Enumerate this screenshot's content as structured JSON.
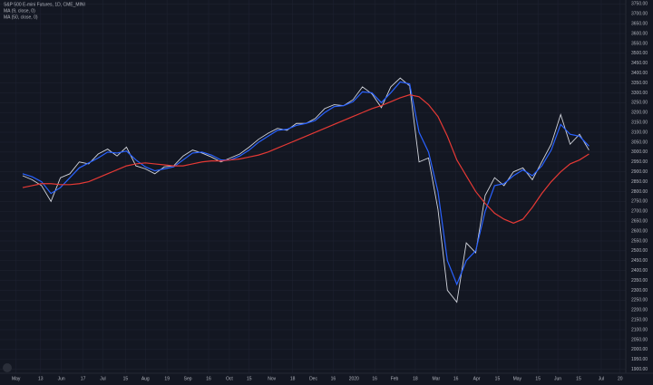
{
  "chart_data": {
    "type": "line",
    "title": "S&P 500 E-mini Futures, 1D, CME_MINI",
    "background": "#131722",
    "grid": true,
    "series": [
      {
        "name": "S&P 500 E-mini Futures",
        "color": "#d1d4dc",
        "values": [
          2880,
          2860,
          2830,
          2750,
          2870,
          2890,
          2950,
          2940,
          2990,
          3015,
          2980,
          3025,
          2930,
          2915,
          2890,
          2925,
          2930,
          2980,
          3010,
          2995,
          2975,
          2950,
          2970,
          2990,
          3025,
          3065,
          3095,
          3120,
          3110,
          3145,
          3145,
          3170,
          3220,
          3240,
          3235,
          3265,
          3330,
          3295,
          3225,
          3330,
          3375,
          3335,
          2950,
          2970,
          2710,
          2300,
          2240,
          2540,
          2490,
          2780,
          2870,
          2830,
          2900,
          2920,
          2860,
          2950,
          3040,
          3190,
          3040,
          3090,
          3010
        ]
      },
      {
        "name": "MA (9, close, 0)",
        "color": "#2962ff",
        "values": [
          2890,
          2875,
          2850,
          2790,
          2820,
          2870,
          2920,
          2945,
          2970,
          3000,
          2995,
          3005,
          2960,
          2925,
          2905,
          2915,
          2925,
          2960,
          2995,
          3000,
          2985,
          2960,
          2960,
          2980,
          3010,
          3050,
          3080,
          3110,
          3115,
          3135,
          3145,
          3160,
          3200,
          3230,
          3235,
          3255,
          3305,
          3300,
          3250,
          3300,
          3355,
          3345,
          3100,
          3000,
          2800,
          2450,
          2330,
          2450,
          2500,
          2700,
          2830,
          2840,
          2880,
          2910,
          2880,
          2930,
          3010,
          3140,
          3090,
          3080,
          3030
        ]
      },
      {
        "name": "MA (50, close, 0)",
        "color": "#e53935",
        "values": [
          2820,
          2830,
          2840,
          2840,
          2835,
          2835,
          2840,
          2850,
          2870,
          2890,
          2910,
          2930,
          2940,
          2945,
          2940,
          2935,
          2930,
          2930,
          2940,
          2950,
          2955,
          2955,
          2960,
          2965,
          2975,
          2985,
          3000,
          3020,
          3040,
          3060,
          3080,
          3100,
          3120,
          3140,
          3160,
          3180,
          3200,
          3220,
          3235,
          3255,
          3275,
          3290,
          3280,
          3240,
          3180,
          3080,
          2960,
          2880,
          2800,
          2740,
          2690,
          2660,
          2640,
          2660,
          2720,
          2790,
          2850,
          2900,
          2940,
          2960,
          2990
        ]
      }
    ],
    "xlim": [
      -2.4,
      63.9
    ],
    "xticks": [
      {
        "value": -0.7,
        "label": "May"
      },
      {
        "value": 1.9,
        "label": "13"
      },
      {
        "value": 4.1,
        "label": "Jun"
      },
      {
        "value": 6.4,
        "label": "17"
      },
      {
        "value": 8.5,
        "label": "Jul"
      },
      {
        "value": 10.9,
        "label": "15"
      },
      {
        "value": 13,
        "label": "Aug"
      },
      {
        "value": 15.3,
        "label": "19"
      },
      {
        "value": 17.5,
        "label": "Sep"
      },
      {
        "value": 19.7,
        "label": "16"
      },
      {
        "value": 21.9,
        "label": "Oct"
      },
      {
        "value": 24,
        "label": "15"
      },
      {
        "value": 26.4,
        "label": "Nov"
      },
      {
        "value": 28.6,
        "label": "18"
      },
      {
        "value": 30.8,
        "label": "Dec"
      },
      {
        "value": 32.9,
        "label": "16"
      },
      {
        "value": 35.1,
        "label": "2020"
      },
      {
        "value": 37.3,
        "label": "16"
      },
      {
        "value": 39.4,
        "label": "Feb"
      },
      {
        "value": 41.6,
        "label": "18"
      },
      {
        "value": 43.8,
        "label": "Mar"
      },
      {
        "value": 45.9,
        "label": "16"
      },
      {
        "value": 48.1,
        "label": "Apr"
      },
      {
        "value": 50.3,
        "label": "15"
      },
      {
        "value": 52.4,
        "label": "May"
      },
      {
        "value": 54.6,
        "label": "15"
      },
      {
        "value": 56.7,
        "label": "Jun"
      },
      {
        "value": 58.9,
        "label": "15"
      },
      {
        "value": 61.3,
        "label": "Jul"
      },
      {
        "value": 63.3,
        "label": "20"
      }
    ],
    "ylim": [
      1880,
      3770
    ],
    "yticks": [
      {
        "value": 3750,
        "label": "3750.00"
      },
      {
        "value": 3700,
        "label": "3700.00"
      },
      {
        "value": 3650,
        "label": "3650.00"
      },
      {
        "value": 3600,
        "label": "3600.00"
      },
      {
        "value": 3550,
        "label": "3550.00"
      },
      {
        "value": 3500,
        "label": "3500.00"
      },
      {
        "value": 3450,
        "label": "3450.00"
      },
      {
        "value": 3400,
        "label": "3400.00"
      },
      {
        "value": 3350,
        "label": "3350.00"
      },
      {
        "value": 3300,
        "label": "3300.00"
      },
      {
        "value": 3250,
        "label": "3250.00"
      },
      {
        "value": 3200,
        "label": "3200.00"
      },
      {
        "value": 3150,
        "label": "3150.00"
      },
      {
        "value": 3100,
        "label": "3100.00"
      },
      {
        "value": 3050,
        "label": "3050.00"
      },
      {
        "value": 3000,
        "label": "3000.00"
      },
      {
        "value": 2950,
        "label": "2950.00"
      },
      {
        "value": 2900,
        "label": "2900.00"
      },
      {
        "value": 2850,
        "label": "2850.00"
      },
      {
        "value": 2800,
        "label": "2800.00"
      },
      {
        "value": 2750,
        "label": "2750.00"
      },
      {
        "value": 2700,
        "label": "2700.00"
      },
      {
        "value": 2650,
        "label": "2650.00"
      },
      {
        "value": 2600,
        "label": "2600.00"
      },
      {
        "value": 2550,
        "label": "2550.00"
      },
      {
        "value": 2500,
        "label": "2500.00"
      },
      {
        "value": 2450,
        "label": "2450.00"
      },
      {
        "value": 2400,
        "label": "2400.00"
      },
      {
        "value": 2350,
        "label": "2350.00"
      },
      {
        "value": 2300,
        "label": "2300.00"
      },
      {
        "value": 2250,
        "label": "2250.00"
      },
      {
        "value": 2200,
        "label": "2200.00"
      },
      {
        "value": 2150,
        "label": "2150.00"
      },
      {
        "value": 2100,
        "label": "2100.00"
      },
      {
        "value": 2050,
        "label": "2050.00"
      },
      {
        "value": 2000,
        "label": "2000.00"
      },
      {
        "value": 1950,
        "label": "1950.00"
      },
      {
        "value": 1900,
        "label": "1900.00"
      }
    ]
  }
}
